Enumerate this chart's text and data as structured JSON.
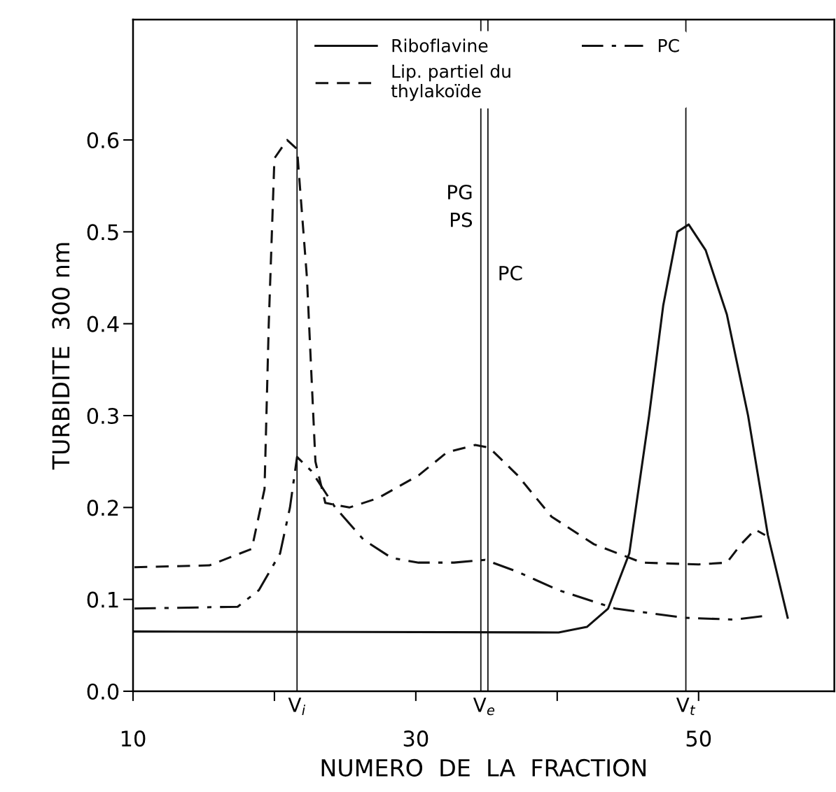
{
  "chart_data": {
    "type": "line",
    "xlabel": "NUMERO  DE  LA  FRACTION",
    "ylabel": "TURBIDITE  300 nm",
    "xlim": [
      10,
      59.6
    ],
    "ylim": [
      0,
      0.731
    ],
    "xticks": [
      10,
      {
        "value": 20,
        "label": null
      },
      30,
      {
        "value": 40,
        "label": null
      },
      50
    ],
    "yticks": [
      {
        "value": 0,
        "label": "0.0"
      },
      0.1,
      0.2,
      0.3,
      0.4,
      0.5,
      0.6
    ],
    "grid": false,
    "legend": "top",
    "series": [
      {
        "name": "Riboflavine",
        "color": "#111111",
        "line_style": "solid",
        "x": [
          10.1,
          40.1,
          42.1,
          43.6,
          45.1,
          46.5,
          47.5,
          48.5,
          49.3,
          50.5,
          52.0,
          53.5,
          54.9,
          56.3
        ],
        "values": [
          0.065,
          0.064,
          0.07,
          0.09,
          0.15,
          0.3,
          0.42,
          0.5,
          0.508,
          0.48,
          0.41,
          0.3,
          0.17,
          0.08
        ]
      },
      {
        "name": "Lip. partiel du\nthylakoïde",
        "color": "#111111",
        "line_style": "dashed",
        "x": [
          10.1,
          15.4,
          18.4,
          19.3,
          19.6,
          20.0,
          20.9,
          21.6,
          22.3,
          22.9,
          23.6,
          25.3,
          27.3,
          30.2,
          32.2,
          34.2,
          35.2,
          37.2,
          39.6,
          42.6,
          46.0,
          50.0,
          52.0,
          53.0,
          54.0,
          54.7
        ],
        "values": [
          0.135,
          0.137,
          0.155,
          0.22,
          0.4,
          0.58,
          0.6,
          0.59,
          0.45,
          0.25,
          0.205,
          0.2,
          0.21,
          0.235,
          0.26,
          0.268,
          0.265,
          0.235,
          0.19,
          0.16,
          0.14,
          0.138,
          0.14,
          0.16,
          0.176,
          0.17
        ]
      },
      {
        "name": "PC",
        "color": "#111111",
        "line_style": "dashdot",
        "x": [
          10.1,
          17.4,
          18.9,
          20.4,
          21.1,
          21.6,
          22.6,
          24.3,
          26.3,
          28.3,
          30.2,
          32.7,
          34.9,
          37.2,
          40.1,
          44.1,
          49.0,
          52.5,
          54.7
        ],
        "values": [
          0.09,
          0.092,
          0.11,
          0.15,
          0.2,
          0.255,
          0.24,
          0.2,
          0.165,
          0.145,
          0.14,
          0.14,
          0.143,
          0.13,
          0.11,
          0.09,
          0.08,
          0.078,
          0.082
        ]
      }
    ],
    "ref_lines": [
      {
        "axis": "x",
        "value": 21.6,
        "label": "V$_{i}$",
        "color": "#111111"
      },
      {
        "axis": "x",
        "value": 34.6,
        "label": "PG\nPS",
        "color": "#111111"
      },
      {
        "axis": "x",
        "value": 35.1,
        "label": "PC",
        "color": "#111111"
      },
      {
        "axis": "x",
        "value": 49.1,
        "label": "V$_{t}$",
        "color": "#111111"
      }
    ],
    "annotations": [
      "V$_{e}$"
    ]
  }
}
